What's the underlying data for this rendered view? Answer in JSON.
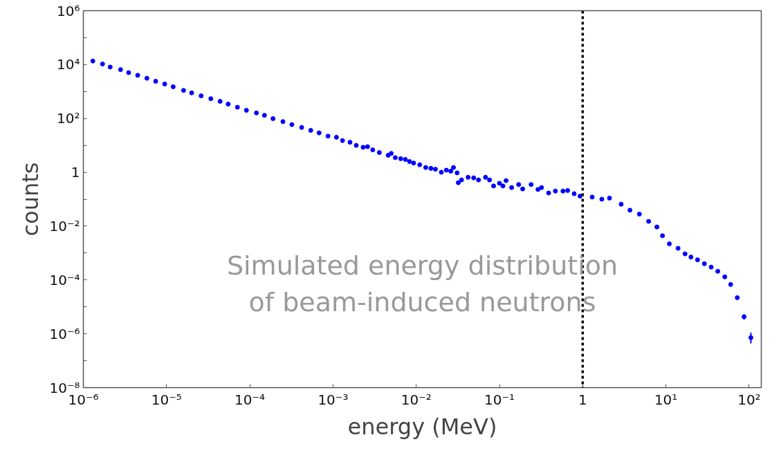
{
  "chart_data": {
    "type": "scatter",
    "xlabel": "energy (MeV)",
    "ylabel": "counts",
    "annotations": [
      "Simulated energy distribution\nof beam-induced neutrons"
    ],
    "log": "xy",
    "grid": false,
    "marker": "circle",
    "xlim": [
      1e-06,
      140
    ],
    "ylim": [
      1e-08,
      1000000.0
    ],
    "xticks": [
      {
        "value": 1e-06,
        "label": "10⁻⁶"
      },
      {
        "value": 1e-05,
        "label": "10⁻⁵"
      },
      {
        "value": 0.0001,
        "label": "10⁻⁴"
      },
      {
        "value": 0.001,
        "label": "10⁻³"
      },
      {
        "value": 0.01,
        "label": "10⁻²"
      },
      {
        "value": 0.1,
        "label": "10⁻¹"
      },
      1,
      {
        "value": 10,
        "label": "10¹"
      },
      {
        "value": 100,
        "label": "10²"
      }
    ],
    "yticks": [
      {
        "value": 1e-08,
        "label": "10⁻⁸"
      },
      {
        "value": 1e-07,
        "label": null
      },
      {
        "value": 1e-06,
        "label": "10⁻⁶"
      },
      {
        "value": 1e-05,
        "label": null
      },
      {
        "value": 0.0001,
        "label": "10⁻⁴"
      },
      {
        "value": 0.001,
        "label": null
      },
      {
        "value": 0.01,
        "label": "10⁻²"
      },
      {
        "value": 0.1,
        "label": null
      },
      1,
      {
        "value": 10,
        "label": null
      },
      {
        "value": 100,
        "label": "10²"
      },
      {
        "value": 1000,
        "label": null
      },
      {
        "value": 10000,
        "label": "10⁴"
      },
      {
        "value": 100000,
        "label": null
      },
      {
        "value": 1000000,
        "label": "10⁶"
      }
    ],
    "ref_lines": [
      {
        "axis": "x",
        "value": 1,
        "color": "#000000",
        "line_style": "dotted"
      }
    ],
    "x": [
      1.3e-06,
      1.7e-06,
      2.1e-06,
      2.8e-06,
      3.5e-06,
      4.5e-06,
      5.8e-06,
      7.4e-06,
      9.5e-06,
      1.2e-05,
      1.6e-05,
      2e-05,
      2.6e-05,
      3.4e-05,
      4.4e-05,
      5.5e-05,
      7.1e-05,
      9.1e-05,
      0.00012,
      0.00015,
      0.00019,
      0.00025,
      0.00032,
      0.00042,
      0.00054,
      0.00068,
      0.00087,
      0.0011,
      0.0013,
      0.0016,
      0.0019,
      0.0023,
      0.0026,
      0.003,
      0.0036,
      0.0046,
      0.005,
      0.0056,
      0.0065,
      0.0074,
      0.0083,
      0.0093,
      0.011,
      0.013,
      0.015,
      0.017,
      0.02,
      0.023,
      0.026,
      0.028,
      0.031,
      0.032,
      0.035,
      0.042,
      0.049,
      0.056,
      0.068,
      0.076,
      0.085,
      0.1,
      0.11,
      0.12,
      0.14,
      0.17,
      0.19,
      0.24,
      0.29,
      0.32,
      0.39,
      0.47,
      0.58,
      0.66,
      0.79,
      0.93,
      1.3,
      1.7,
      2.1,
      2.9,
      3.7,
      4.8,
      6.2,
      7.8,
      9.1,
      11,
      14,
      17,
      20,
      24,
      29,
      35,
      42,
      51,
      60,
      72,
      87,
      105
    ],
    "series": [
      {
        "color": "#0000ff",
        "values": [
          13500,
          10500,
          8100,
          6500,
          5000,
          4000,
          3100,
          2400,
          1900,
          1500,
          1100,
          890,
          690,
          540,
          430,
          340,
          260,
          200,
          160,
          130,
          98,
          76,
          59,
          46,
          36,
          29,
          22,
          20,
          15,
          13,
          10,
          8.5,
          8.9,
          6.8,
          5.4,
          4.3,
          5.0,
          3.5,
          3.2,
          3.0,
          2.5,
          2.2,
          1.9,
          1.5,
          1.4,
          1.3,
          1.0,
          1.2,
          1.1,
          1.5,
          0.95,
          0.41,
          0.52,
          0.65,
          0.62,
          0.52,
          0.65,
          0.52,
          0.31,
          0.39,
          0.31,
          0.49,
          0.27,
          0.35,
          0.24,
          0.35,
          0.23,
          0.27,
          0.17,
          0.2,
          0.2,
          0.21,
          0.16,
          0.13,
          0.12,
          0.1,
          0.11,
          0.065,
          0.039,
          0.028,
          0.015,
          0.0093,
          0.0044,
          0.0022,
          0.0015,
          0.00093,
          0.00071,
          0.00056,
          0.0004,
          0.0003,
          0.00021,
          0.00013,
          6.8e-05,
          2.2e-05,
          4.3e-06,
          7.2e-07
        ],
        "errors": [
          null,
          null,
          null,
          null,
          null,
          null,
          null,
          null,
          null,
          null,
          null,
          null,
          null,
          null,
          null,
          null,
          null,
          null,
          null,
          null,
          null,
          null,
          null,
          null,
          null,
          null,
          null,
          null,
          null,
          null,
          null,
          null,
          null,
          null,
          null,
          null,
          null,
          null,
          null,
          null,
          null,
          null,
          null,
          null,
          null,
          null,
          null,
          null,
          null,
          null,
          null,
          null,
          null,
          null,
          null,
          null,
          null,
          null,
          null,
          null,
          null,
          null,
          null,
          null,
          null,
          null,
          null,
          null,
          null,
          null,
          null,
          null,
          null,
          null,
          null,
          null,
          null,
          null,
          null,
          null,
          null,
          null,
          null,
          null,
          null,
          null,
          null,
          null,
          null,
          null,
          null,
          null,
          null,
          null,
          [
            3.4e-06,
            5.4e-06
          ],
          [
            4.4e-07,
            1.1e-06
          ]
        ]
      }
    ]
  }
}
